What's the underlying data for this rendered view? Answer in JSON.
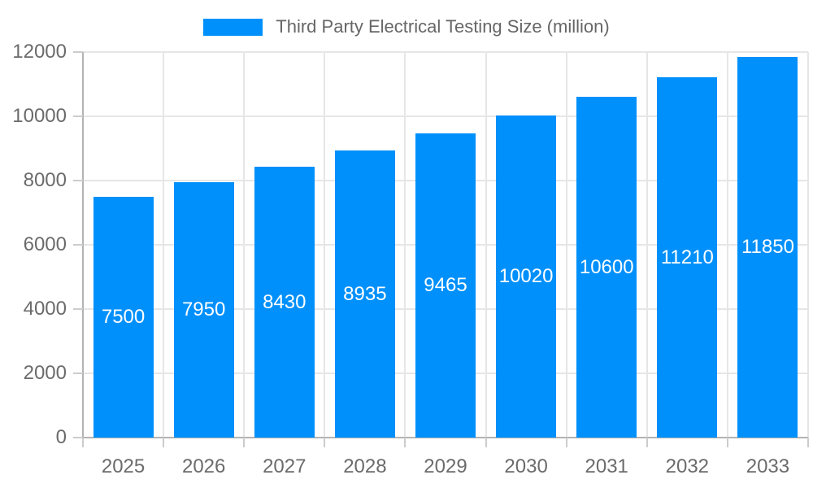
{
  "chart_data": {
    "type": "bar",
    "title": "Third Party Electrical Testing Size (million)",
    "categories": [
      "2025",
      "2026",
      "2027",
      "2028",
      "2029",
      "2030",
      "2031",
      "2032",
      "2033"
    ],
    "values": [
      7500,
      7950,
      8430,
      8935,
      9465,
      10020,
      10600,
      11210,
      11850
    ],
    "xlabel": "",
    "ylabel": "",
    "ylim": [
      0,
      12000
    ],
    "yticks": [
      0,
      2000,
      4000,
      6000,
      8000,
      10000,
      12000
    ],
    "grid": true,
    "legend_position": "top",
    "data_label_position": "inside-center",
    "colors": {
      "bar": "#0090fb",
      "grid": "#e6e6e6",
      "axis": "#b3b3b3",
      "tick": "#cccccc",
      "axis_text": "#6b6b6b",
      "legend_text": "#666666",
      "data_label_text": "#ffffff",
      "background": "#ffffff"
    }
  }
}
